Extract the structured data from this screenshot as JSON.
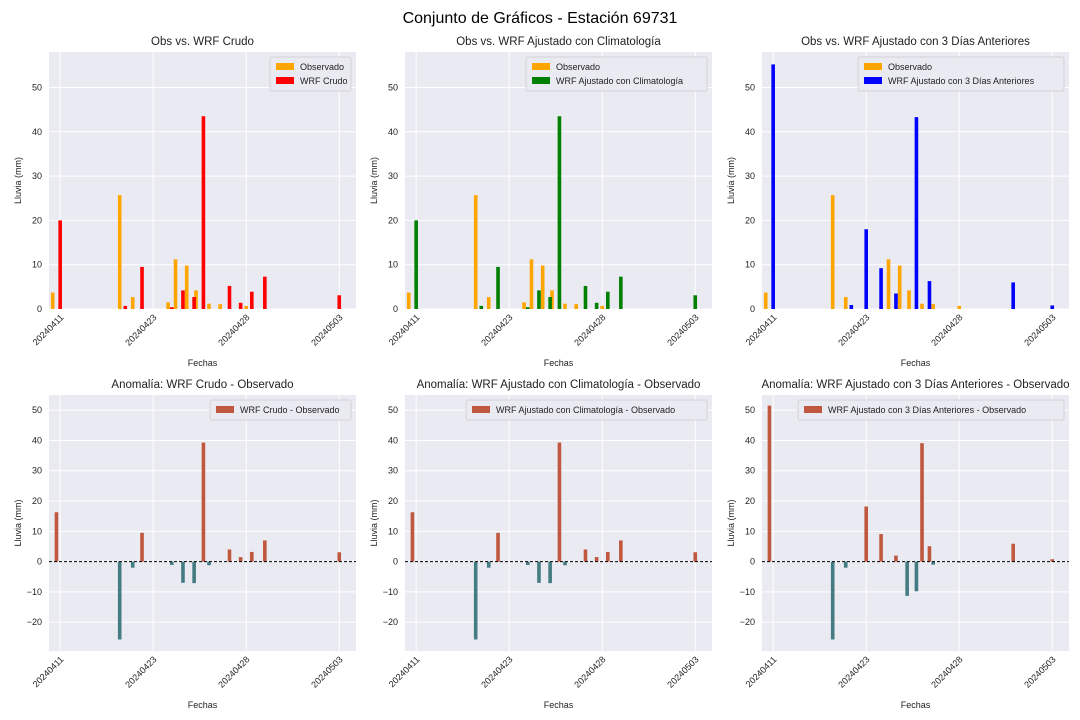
{
  "figure": {
    "suptitle": "Conjunto de Gráficos - Estación 69731"
  },
  "colors": {
    "axes_bg": "#eaeaf2",
    "grid": "#ffffff",
    "observed": "#ffa500",
    "wrf_crudo": "#ff0000",
    "wrf_clim": "#008000",
    "wrf_3dias": "#0000ff",
    "anomaly_positive": "#c0583f",
    "anomaly_negative": "#447c84"
  },
  "chart_data": [
    {
      "type": "bar",
      "title": "Obs vs. WRF Crudo",
      "xlabel": "Fechas",
      "ylabel": "Lluvia (mm)",
      "ylim": [
        0,
        58
      ],
      "yticks": [
        0,
        10,
        20,
        30,
        40,
        50
      ],
      "x_tick_labels": [
        "20240411",
        "20240423",
        "20240428",
        "20240503"
      ],
      "grid": true,
      "legend_position": "upper right",
      "series": [
        {
          "name": "Observado",
          "color": "#ffa500",
          "points": [
            [
              0.2,
              3.7
            ],
            [
              3.8,
              25.7
            ],
            [
              4.5,
              2.7
            ],
            [
              6.4,
              1.5
            ],
            [
              6.8,
              11.2
            ],
            [
              7.4,
              9.8
            ],
            [
              7.9,
              4.2
            ],
            [
              8.6,
              1.2
            ],
            [
              9.2,
              1.1
            ],
            [
              10.6,
              0.7
            ]
          ]
        },
        {
          "name": "WRF Crudo",
          "color": "#ff0000",
          "points": [
            [
              0.6,
              20.0
            ],
            [
              4.1,
              0.7
            ],
            [
              5.0,
              9.5
            ],
            [
              6.6,
              0.4
            ],
            [
              7.2,
              4.2
            ],
            [
              7.8,
              2.7
            ],
            [
              8.3,
              43.5
            ],
            [
              9.7,
              5.2
            ],
            [
              10.3,
              1.4
            ],
            [
              10.9,
              3.9
            ],
            [
              11.6,
              7.3
            ],
            [
              15.6,
              3.1
            ]
          ]
        }
      ]
    },
    {
      "type": "bar",
      "title": "Obs vs. WRF Ajustado con Climatología",
      "xlabel": "Fechas",
      "ylabel": "Lluvia (mm)",
      "ylim": [
        0,
        58
      ],
      "yticks": [
        0,
        10,
        20,
        30,
        40,
        50
      ],
      "x_tick_labels": [
        "20240411",
        "20240423",
        "20240428",
        "20240503"
      ],
      "grid": true,
      "legend_position": "upper right",
      "series": [
        {
          "name": "Observado",
          "color": "#ffa500",
          "points": [
            [
              0.2,
              3.7
            ],
            [
              3.8,
              25.7
            ],
            [
              4.5,
              2.7
            ],
            [
              6.4,
              1.5
            ],
            [
              6.8,
              11.2
            ],
            [
              7.4,
              9.8
            ],
            [
              7.9,
              4.2
            ],
            [
              8.6,
              1.2
            ],
            [
              9.2,
              1.1
            ],
            [
              10.6,
              0.7
            ]
          ]
        },
        {
          "name": "WRF Ajustado con Climatología",
          "color": "#008000",
          "points": [
            [
              0.6,
              20.0
            ],
            [
              4.1,
              0.7
            ],
            [
              5.0,
              9.5
            ],
            [
              6.6,
              0.4
            ],
            [
              7.2,
              4.2
            ],
            [
              7.8,
              2.7
            ],
            [
              8.3,
              43.5
            ],
            [
              9.7,
              5.2
            ],
            [
              10.3,
              1.4
            ],
            [
              10.9,
              3.9
            ],
            [
              11.6,
              7.3
            ],
            [
              15.6,
              3.1
            ]
          ]
        }
      ]
    },
    {
      "type": "bar",
      "title": "Obs vs. WRF Ajustado con 3 Días Anteriores",
      "xlabel": "Fechas",
      "ylabel": "Lluvia (mm)",
      "ylim": [
        0,
        58
      ],
      "yticks": [
        0,
        10,
        20,
        30,
        40,
        50
      ],
      "x_tick_labels": [
        "20240411",
        "20240423",
        "20240428",
        "20240503"
      ],
      "grid": true,
      "legend_position": "upper right",
      "series": [
        {
          "name": "Observado",
          "color": "#ffa500",
          "points": [
            [
              0.2,
              3.7
            ],
            [
              3.8,
              25.7
            ],
            [
              4.5,
              2.7
            ],
            [
              6.4,
              1.5
            ],
            [
              6.8,
              11.2
            ],
            [
              7.4,
              9.8
            ],
            [
              7.9,
              4.2
            ],
            [
              8.6,
              1.2
            ],
            [
              9.2,
              1.1
            ],
            [
              10.6,
              0.7
            ]
          ]
        },
        {
          "name": "WRF Ajustado con 3 Días Anteriores",
          "color": "#0000ff",
          "points": [
            [
              0.6,
              55.2
            ],
            [
              4.8,
              0.9
            ],
            [
              5.6,
              18.0
            ],
            [
              6.4,
              9.2
            ],
            [
              7.2,
              3.5
            ],
            [
              8.3,
              43.3
            ],
            [
              9.0,
              6.3
            ],
            [
              13.5,
              6.0
            ],
            [
              15.6,
              0.8
            ]
          ]
        }
      ]
    },
    {
      "type": "bar",
      "title": "Anomalía: WRF Crudo - Observado",
      "xlabel": "Fechas",
      "ylabel": "Lluvia (mm)",
      "ylim": [
        -29.5,
        55
      ],
      "yticks": [
        -20,
        -10,
        0,
        10,
        20,
        30,
        40,
        50
      ],
      "x_tick_labels": [
        "20240411",
        "20240423",
        "20240428",
        "20240503"
      ],
      "grid": true,
      "legend_position": "upper right",
      "zero_line": "dashed",
      "series": [
        {
          "name": "WRF Crudo - Observado",
          "legend_color": "#c0583f",
          "points": [
            [
              0.4,
              16.3
            ],
            [
              3.8,
              -25.7
            ],
            [
              4.5,
              -2.0
            ],
            [
              5.0,
              9.5
            ],
            [
              6.6,
              -1.1
            ],
            [
              7.2,
              -7.0
            ],
            [
              7.8,
              -7.1
            ],
            [
              8.3,
              39.3
            ],
            [
              8.6,
              -1.2
            ],
            [
              9.7,
              4.0
            ],
            [
              10.3,
              1.5
            ],
            [
              10.9,
              3.2
            ],
            [
              11.6,
              7.0
            ],
            [
              15.6,
              3.1
            ]
          ]
        }
      ]
    },
    {
      "type": "bar",
      "title": "Anomalía: WRF Ajustado con Climatología - Observado",
      "xlabel": "Fechas",
      "ylabel": "Lluvia (mm)",
      "ylim": [
        -29.5,
        55
      ],
      "yticks": [
        -20,
        -10,
        0,
        10,
        20,
        30,
        40,
        50
      ],
      "x_tick_labels": [
        "20240411",
        "20240423",
        "20240428",
        "20240503"
      ],
      "grid": true,
      "legend_position": "upper right",
      "zero_line": "dashed",
      "series": [
        {
          "name": "WRF Ajustado con Climatología - Observado",
          "legend_color": "#c0583f",
          "points": [
            [
              0.4,
              16.3
            ],
            [
              3.8,
              -25.7
            ],
            [
              4.5,
              -2.0
            ],
            [
              5.0,
              9.5
            ],
            [
              6.6,
              -1.1
            ],
            [
              7.2,
              -7.0
            ],
            [
              7.8,
              -7.1
            ],
            [
              8.3,
              39.3
            ],
            [
              8.6,
              -1.2
            ],
            [
              9.7,
              4.0
            ],
            [
              10.3,
              1.5
            ],
            [
              10.9,
              3.2
            ],
            [
              11.6,
              7.0
            ],
            [
              15.6,
              3.1
            ]
          ]
        }
      ]
    },
    {
      "type": "bar",
      "title": "Anomalía: WRF Ajustado con 3 Días Anteriores - Observado",
      "xlabel": "Fechas",
      "ylabel": "Lluvia (mm)",
      "ylim": [
        -29.5,
        55
      ],
      "yticks": [
        -20,
        -10,
        0,
        10,
        20,
        30,
        40,
        50
      ],
      "x_tick_labels": [
        "20240411",
        "20240423",
        "20240428",
        "20240503"
      ],
      "grid": true,
      "legend_position": "upper right",
      "zero_line": "dashed",
      "series": [
        {
          "name": "WRF Ajustado con 3 Días Anteriores - Observado",
          "legend_color": "#c0583f",
          "points": [
            [
              0.4,
              51.5
            ],
            [
              3.8,
              -25.7
            ],
            [
              4.5,
              -2.0
            ],
            [
              5.6,
              18.2
            ],
            [
              6.4,
              9.1
            ],
            [
              7.2,
              2.0
            ],
            [
              7.8,
              -11.3
            ],
            [
              8.3,
              -9.8
            ],
            [
              8.6,
              39.1
            ],
            [
              9.0,
              5.1
            ],
            [
              9.2,
              -1.0
            ],
            [
              10.6,
              -0.3
            ],
            [
              13.5,
              5.9
            ],
            [
              15.6,
              0.8
            ]
          ]
        }
      ]
    }
  ]
}
